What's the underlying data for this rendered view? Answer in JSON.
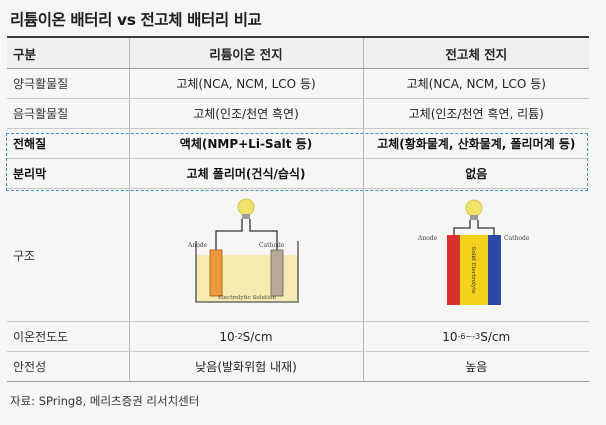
{
  "title": "리튬이온 배터리 vs 전고체 배터리 비교",
  "header": {
    "col1": "구분",
    "col2": "리튬이온 전지",
    "col3": "전고체 전지"
  },
  "rows": [
    {
      "label": "양극활물질",
      "li_ion": "고체(NCA, NCM, LCO 등)",
      "solid": "고체(NCA, NCM, LCO 등)"
    },
    {
      "label": "음극활물질",
      "li_ion": "고체(인조/천연 흑연)",
      "solid": "고체(인조/천연 흑연, 리튬)"
    },
    {
      "label": "전해질",
      "li_ion": "액체(NMP+Li-Salt 등)",
      "solid": "고체(황화물계, 산화물계, 폴리머계 등)"
    },
    {
      "label": "분리막",
      "li_ion": "고체 폴리머(건식/습식)",
      "solid": "없음"
    }
  ],
  "structure": {
    "label": "구조",
    "li_ion_diagram": {
      "anode_label": "Anode",
      "cathode_label": "Cathode",
      "electrolyte_label": "Electrolytic Solution"
    },
    "solid_diagram": {
      "anode_label": "Anode",
      "cathode_label": "Cathode",
      "electrolyte_label": "Solid Electrolyte"
    },
    "colors": {
      "bulb": "#f3e36a",
      "beaker_fill": "#f5eab0",
      "anode_orange": "#ef9a3a",
      "cathode_gray": "#b7a99a",
      "anode_red": "#d9312b",
      "electrolyte_yellow": "#f4d21c",
      "cathode_blue": "#2b4aa8"
    }
  },
  "conductivity": {
    "label": "이온전도도",
    "li_ion_base": "10",
    "li_ion_exp": "-2",
    "li_ion_unit": "S/cm",
    "solid_base": "10",
    "solid_exp": "-6~-3",
    "solid_unit": "S/cm"
  },
  "safety": {
    "label": "안전성",
    "li_ion": "낮음(발화위험 내재)",
    "solid": "높음"
  },
  "source": "자료: SPring8, 메리츠증권 리서치센터"
}
